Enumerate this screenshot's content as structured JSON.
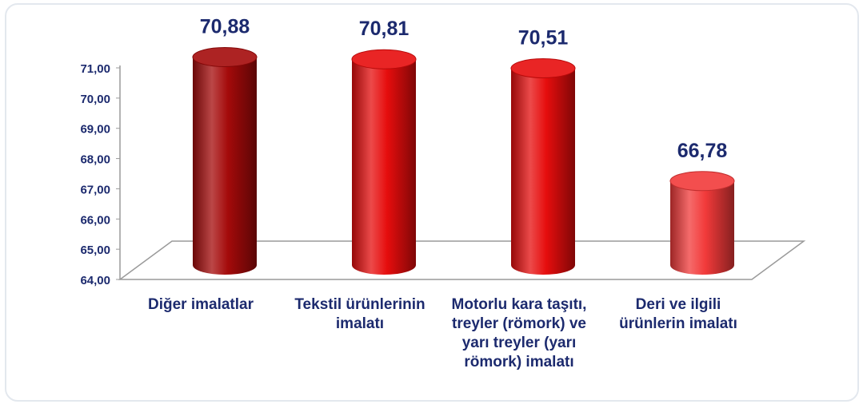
{
  "chart_data": {
    "type": "bar",
    "categories": [
      "Diğer imalatlar",
      "Tekstil ürünlerinin imalatı",
      "Motorlu kara taşıtı, treyler (römork) ve yarı treyler (yarı römork) imalatı",
      "Deri ve ilgili ürünlerin imalatı"
    ],
    "values": [
      70.88,
      70.81,
      70.51,
      66.78
    ],
    "value_labels": [
      "70,88",
      "70,81",
      "70,51",
      "66,78"
    ],
    "colors": [
      "#a40a0a",
      "#e60d0d",
      "#e60d0d",
      "#f23a3a"
    ],
    "ylim": [
      64,
      71
    ],
    "yticks": [
      {
        "value": 64,
        "label": "64,00"
      },
      {
        "value": 65,
        "label": "65,00"
      },
      {
        "value": 66,
        "label": "66,00"
      },
      {
        "value": 67,
        "label": "67,00"
      },
      {
        "value": 68,
        "label": "68,00"
      },
      {
        "value": 69,
        "label": "69,00"
      },
      {
        "value": 70,
        "label": "70,00"
      },
      {
        "value": 71,
        "label": "71,00"
      }
    ]
  }
}
